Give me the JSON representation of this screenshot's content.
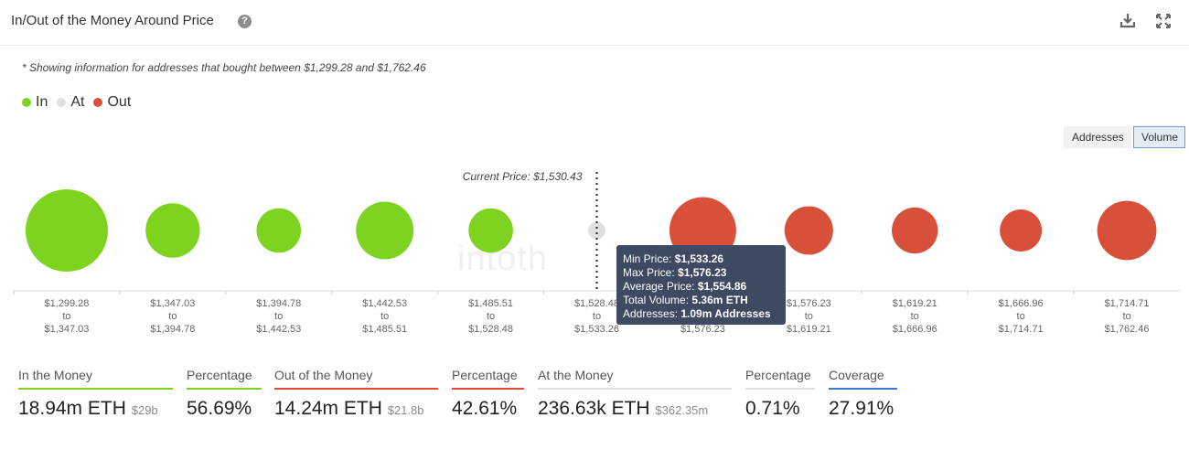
{
  "header": {
    "title": "In/Out of the Money Around Price",
    "help_icon": "question-circle-icon",
    "download_icon": "download-icon",
    "fullscreen_icon": "expand-icon"
  },
  "note": "* Showing information for addresses that bought between $1,299.28 and $1,762.46",
  "legend": [
    {
      "label": "In",
      "color": "#7ed321"
    },
    {
      "label": "At",
      "color": "#e0e0e0"
    },
    {
      "label": "Out",
      "color": "#d9503a"
    }
  ],
  "toggles": {
    "addresses": "Addresses",
    "volume": "Volume"
  },
  "watermark": "intoth",
  "chart_data": {
    "type": "bubble",
    "current_price_label": "Current Price: $1,530.43",
    "current_price_after_index": 5,
    "x_separator": "to",
    "ranges": [
      {
        "from": "$1,299.28",
        "to": "$1,347.03",
        "status": "in",
        "relative_size": 1.0
      },
      {
        "from": "$1,347.03",
        "to": "$1,394.78",
        "status": "in",
        "relative_size": 0.66
      },
      {
        "from": "$1,394.78",
        "to": "$1,442.53",
        "status": "in",
        "relative_size": 0.54
      },
      {
        "from": "$1,442.53",
        "to": "$1,485.51",
        "status": "in",
        "relative_size": 0.7
      },
      {
        "from": "$1,485.51",
        "to": "$1,528.48",
        "status": "in",
        "relative_size": 0.54
      },
      {
        "from": "$1,528.48",
        "to": "$1,533.26",
        "status": "at",
        "relative_size": 0.21
      },
      {
        "from": "$1,533.26",
        "to": "$1,576.23",
        "status": "out",
        "relative_size": 0.81
      },
      {
        "from": "$1,576.23",
        "to": "$1,619.21",
        "status": "out",
        "relative_size": 0.59
      },
      {
        "from": "$1,619.21",
        "to": "$1,666.96",
        "status": "out",
        "relative_size": 0.56
      },
      {
        "from": "$1,666.96",
        "to": "$1,714.71",
        "status": "out",
        "relative_size": 0.51
      },
      {
        "from": "$1,714.71",
        "to": "$1,762.46",
        "status": "out",
        "relative_size": 0.72
      }
    ],
    "colors": {
      "in": "#7ed321",
      "at": "#e0e0e0",
      "out": "#d9503a"
    }
  },
  "tooltip": {
    "min_label": "Min Price:",
    "min_value": "$1,533.26",
    "max_label": "Max Price:",
    "max_value": "$1,576.23",
    "avg_label": "Average Price:",
    "avg_value": "$1,554.86",
    "vol_label": "Total Volume:",
    "vol_value": "5.36m ETH",
    "addr_label": "Addresses:",
    "addr_value": "1.09m Addresses"
  },
  "stats": [
    {
      "label": "In the Money",
      "value": "18.94m ETH",
      "sub": "$29b",
      "color": "#7ed321"
    },
    {
      "label": "Percentage",
      "value": "56.69%",
      "sub": "",
      "color": "#7ed321"
    },
    {
      "label": "Out of the Money",
      "value": "14.24m ETH",
      "sub": "$21.8b",
      "color": "#d9503a"
    },
    {
      "label": "Percentage",
      "value": "42.61%",
      "sub": "",
      "color": "#d9503a"
    },
    {
      "label": "At the Money",
      "value": "236.63k ETH",
      "sub": "$362.35m",
      "color": "#e0e0e0"
    },
    {
      "label": "Percentage",
      "value": "0.71%",
      "sub": "",
      "color": "#e0e0e0"
    },
    {
      "label": "Coverage",
      "value": "27.91%",
      "sub": "",
      "color": "#3a7bd5"
    }
  ]
}
